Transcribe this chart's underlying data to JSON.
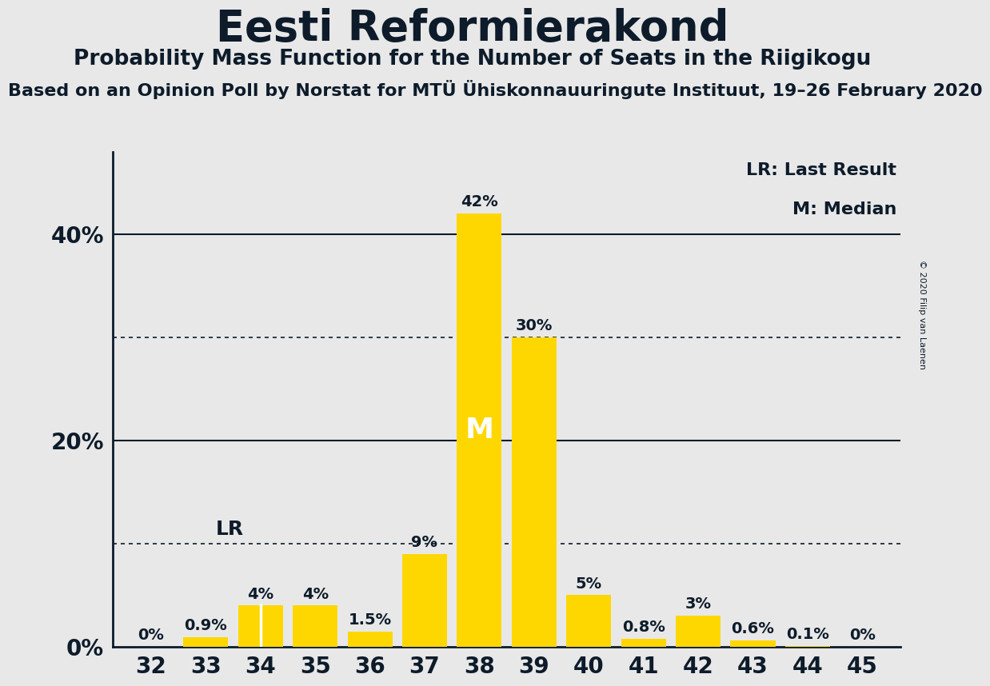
{
  "title": "Eesti Reformierakond",
  "subtitle": "Probability Mass Function for the Number of Seats in the Riigikogu",
  "source_line": "Based on an Opinion Poll by Norstat for MTÜ Ühiskonnauuringute Instituut, 19–26 February 2020",
  "copyright": "© 2020 Filip van Laenen",
  "seats": [
    32,
    33,
    34,
    35,
    36,
    37,
    38,
    39,
    40,
    41,
    42,
    43,
    44,
    45
  ],
  "probabilities": [
    0.0,
    0.9,
    4.0,
    4.0,
    1.5,
    9.0,
    42.0,
    30.0,
    5.0,
    0.8,
    3.0,
    0.6,
    0.1,
    0.0
  ],
  "bar_color": "#FFD700",
  "background_color": "#E8E8E8",
  "text_color": "#0D1B2A",
  "label_values": [
    "0%",
    "0.9%",
    "4%",
    "4%",
    "1.5%",
    "9%",
    "42%",
    "30%",
    "5%",
    "0.8%",
    "3%",
    "0.6%",
    "0.1%",
    "0%"
  ],
  "lr_seat": 34,
  "median_seat": 38,
  "dotted_lines": [
    10,
    30
  ],
  "solid_lines": [
    20,
    40
  ],
  "ytick_positions": [
    0,
    20,
    40
  ],
  "ytick_labels": [
    "0%",
    "20%",
    "40%"
  ],
  "title_fontsize": 38,
  "subtitle_fontsize": 19,
  "source_fontsize": 16,
  "axis_label_fontsize": 20,
  "bar_label_fontsize": 14,
  "legend_text_lr": "LR: Last Result",
  "legend_text_m": "M: Median",
  "legend_fontsize": 16
}
